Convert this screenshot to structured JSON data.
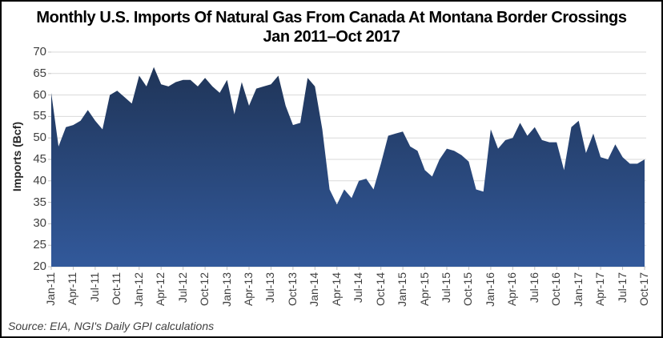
{
  "chart_data": {
    "type": "area",
    "title_line1": "Monthly U.S. Imports Of Natural Gas From Canada At Montana Border Crossings",
    "title_line2": "Jan 2011–Oct 2017",
    "ylabel": "Imports (Bcf)",
    "ylim": [
      20,
      70
    ],
    "ytick_step": 5,
    "y_tick_labels": [
      "20",
      "25",
      "30",
      "35",
      "40",
      "45",
      "50",
      "55",
      "60",
      "65",
      "70"
    ],
    "x_tick_labels": [
      "Jan-11",
      "Apr-11",
      "Jul-11",
      "Oct-11",
      "Jan-12",
      "Apr-12",
      "Jul-12",
      "Oct-12",
      "Jan-13",
      "Apr-13",
      "Jul-13",
      "Oct-13",
      "Jan-14",
      "Apr-14",
      "Jul-14",
      "Oct-14",
      "Jan-15",
      "Apr-15",
      "Jul-15",
      "Oct-15",
      "Jan-16",
      "Apr-16",
      "Jul-16",
      "Oct-16",
      "Jan-17",
      "Apr-17",
      "Jul-17",
      "Oct-17"
    ],
    "x_tick_every_n_points": 3,
    "x_range": "Jan 2011 to Oct 2017, monthly",
    "values": [
      60.5,
      48,
      52.5,
      53,
      54,
      56.5,
      54,
      52,
      60,
      61,
      59.5,
      58,
      64.5,
      62,
      66.5,
      62.5,
      62,
      63,
      63.5,
      63.5,
      62,
      64,
      62,
      60.5,
      63.5,
      55.5,
      63,
      57.5,
      61.5,
      62,
      62.5,
      64.5,
      57.5,
      53,
      53.5,
      64,
      62,
      52,
      38,
      34.5,
      38,
      36,
      40,
      40.5,
      38,
      44,
      50.5,
      51,
      51.5,
      48,
      47,
      42.5,
      41,
      45,
      47.5,
      47,
      46,
      44.5,
      38,
      37.5,
      52,
      47.5,
      49.5,
      50,
      53.5,
      50.5,
      52.5,
      49.5,
      49,
      49,
      42.5,
      52.5,
      54,
      46.5,
      51,
      45.5,
      45,
      48.5,
      45.5,
      44,
      44,
      45
    ],
    "grid": true,
    "legend": "none",
    "source": "Source: EIA, NGI's Daily GPI calculations",
    "colors": {
      "area_fill_top": "#1E3253",
      "area_fill_bottom": "#32599B",
      "gridline": "#D9D9D9",
      "tick": "#BFBFBF",
      "axis_text": "#404040",
      "title_text": "#000000"
    }
  }
}
